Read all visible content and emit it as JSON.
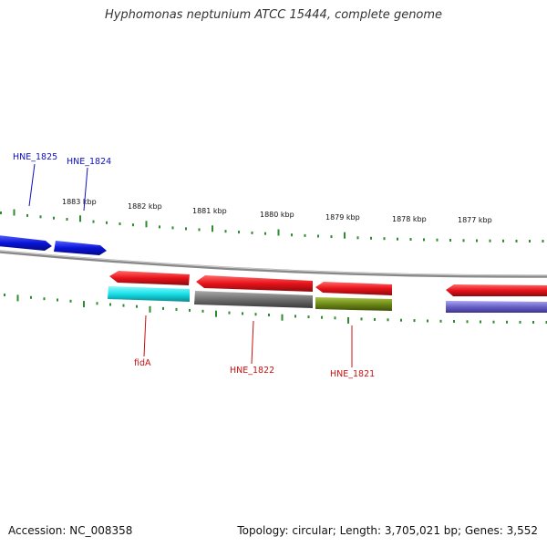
{
  "title": "Hyphomonas neptunium ATCC 15444, complete genome",
  "footer": {
    "accession": "Accession: NC_008358",
    "summary": "Topology: circular; Length: 3,705,021 bp; Genes: 3,552"
  },
  "ruler": {
    "labels": [
      "1883 kbp",
      "1882 kbp",
      "1881 kbp",
      "1880 kbp",
      "1879 kbp",
      "1878 kbp",
      "1877 kbp"
    ]
  },
  "colors": {
    "tick": "#2e8b2e",
    "backbone": "#888888",
    "blue_gene": "#0a14d8",
    "red_gene": "#e8121a",
    "cyan_gene": "#18e0e8",
    "gray_gene": "#6e6e6e",
    "olive_gene": "#6e8a18",
    "purple_gene": "#6a62c8",
    "blue_label": "#1010c0",
    "red_label": "#c81010"
  },
  "gene_labels": {
    "hne1825": "HNE_1825",
    "hne1824": "HNE_1824",
    "fida": "fidA",
    "hne1822": "HNE_1822",
    "hne1821": "HNE_1821"
  }
}
